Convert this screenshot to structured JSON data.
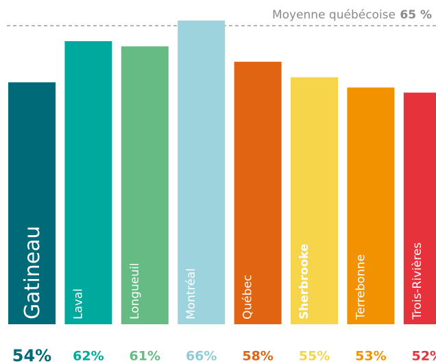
{
  "chart_data": {
    "type": "bar",
    "categories": [
      "Gatineau",
      "Laval",
      "Longueuil",
      "Montréal",
      "Québec",
      "Sherbrooke",
      "Terrebonne",
      "Trois-Rivières"
    ],
    "values": [
      54,
      62,
      61,
      66,
      58,
      55,
      53,
      52
    ],
    "value_labels": [
      "54%",
      "62%",
      "61%",
      "66%",
      "58%",
      "55%",
      "53%",
      "52%"
    ],
    "colors": [
      "#006a78",
      "#00a99d",
      "#66bb84",
      "#9dd3dc",
      "#e06412",
      "#f6d54a",
      "#f39200",
      "#e5323b"
    ],
    "ylim": [
      7,
      70
    ],
    "average": {
      "label": "Moyenne québécoise",
      "value": 65,
      "value_label": "65 %"
    }
  }
}
